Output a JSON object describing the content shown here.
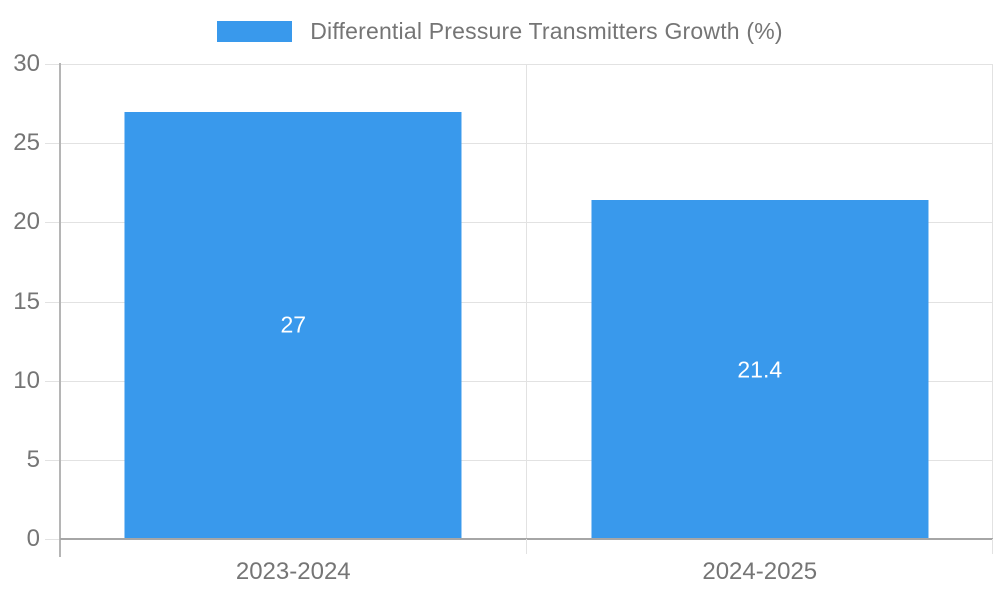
{
  "legend": {
    "label": "Differential Pressure Transmitters Growth (%)"
  },
  "chart_data": {
    "type": "bar",
    "title": "Differential Pressure Transmitters Growth (%)",
    "categories": [
      "2023-2024",
      "2024-2025"
    ],
    "series": [
      {
        "name": "Differential Pressure Transmitters Growth (%)",
        "values": [
          27,
          21.4
        ],
        "color": "#3999ec"
      }
    ],
    "value_labels": [
      "27",
      "21.4"
    ],
    "xlabel": "",
    "ylabel": "",
    "ylim": [
      0,
      30
    ],
    "yticks": [
      0,
      5,
      10,
      15,
      20,
      25,
      30
    ],
    "grid": true,
    "legend_position": "top",
    "colors": {
      "bar": "#3999ec",
      "grid": "#e2e2e2",
      "axis_left": "#b5b5b5",
      "axis_bottom": "#a6a6a6",
      "tick_label": "#757575",
      "bar_value_label": "#ffffff",
      "background": "#ffffff"
    }
  }
}
